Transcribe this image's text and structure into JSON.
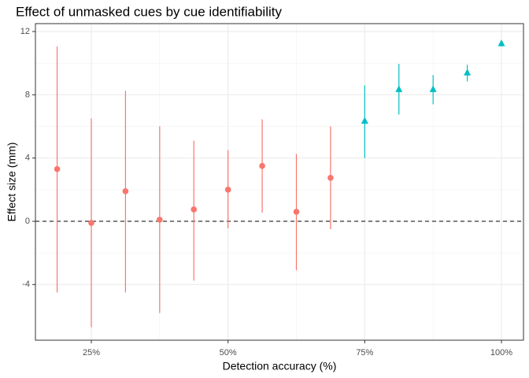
{
  "chart_data": {
    "type": "errorbar",
    "title": "Effect of unmasked cues by cue identifiability",
    "x_label": "Detection accuracy (%)",
    "y_label": "Effect size (mm)",
    "xlim": [
      14.78,
      104.03
    ],
    "ylim": [
      -7.52,
      12.5
    ],
    "xticks": [
      {
        "value": 25,
        "label": "25%"
      },
      {
        "value": 50,
        "label": "50%"
      },
      {
        "value": 75,
        "label": "75%"
      },
      {
        "value": 100,
        "label": "100%"
      }
    ],
    "yticks": [
      -4,
      0,
      4,
      8,
      12
    ],
    "grid": true,
    "reference_line": 0,
    "series": [
      {
        "color": "#F8766D",
        "shape": "circle",
        "x": [
          18.75,
          25,
          31.25,
          37.5,
          43.75,
          50,
          56.25,
          62.5,
          68.75
        ],
        "values": [
          3.3,
          -0.1,
          1.9,
          0.1,
          0.75,
          2.0,
          3.5,
          0.6,
          2.75
        ],
        "upper": [
          11.05,
          6.5,
          8.25,
          6.0,
          5.1,
          4.5,
          6.45,
          4.25,
          6.0
        ],
        "lower": [
          -4.5,
          -6.7,
          -4.5,
          -5.8,
          -3.75,
          -0.45,
          0.55,
          -3.1,
          -0.5
        ]
      },
      {
        "color": "#00BFC4",
        "shape": "triangle",
        "x": [
          75,
          81.25,
          87.5,
          93.75,
          100
        ],
        "values": [
          6.35,
          8.35,
          8.35,
          9.4,
          11.25
        ],
        "upper": [
          8.6,
          9.95,
          9.25,
          9.9,
          11.45
        ],
        "lower": [
          4.0,
          6.75,
          7.4,
          8.85,
          11.05
        ]
      }
    ]
  }
}
